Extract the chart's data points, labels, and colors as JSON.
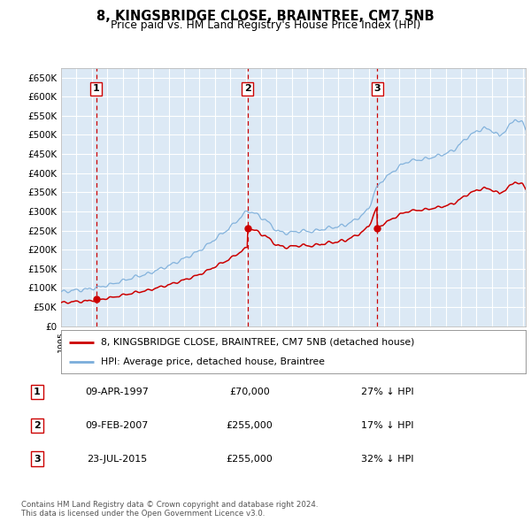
{
  "title": "8, KINGSBRIDGE CLOSE, BRAINTREE, CM7 5NB",
  "subtitle": "Price paid vs. HM Land Registry's House Price Index (HPI)",
  "hpi_label": "HPI: Average price, detached house, Braintree",
  "property_label": "8, KINGSBRIDGE CLOSE, BRAINTREE, CM7 5NB (detached house)",
  "hpi_color": "#7aadda",
  "property_color": "#cc0000",
  "plot_bg": "#dce9f5",
  "ylim": [
    0,
    675000
  ],
  "yticks": [
    0,
    50000,
    100000,
    150000,
    200000,
    250000,
    300000,
    350000,
    400000,
    450000,
    500000,
    550000,
    600000,
    650000
  ],
  "sales": [
    {
      "num": 1,
      "date_label": "09-APR-1997",
      "price": 70000,
      "pct": "27% ↓ HPI",
      "year": 1997.28
    },
    {
      "num": 2,
      "date_label": "09-FEB-2007",
      "price": 255000,
      "pct": "17% ↓ HPI",
      "year": 2007.11
    },
    {
      "num": 3,
      "date_label": "23-JUL-2015",
      "price": 255000,
      "pct": "32% ↓ HPI",
      "year": 2015.56
    }
  ],
  "footer": "Contains HM Land Registry data © Crown copyright and database right 2024.\nThis data is licensed under the Open Government Licence v3.0.",
  "xmin": 1995.0,
  "xmax": 2025.2
}
